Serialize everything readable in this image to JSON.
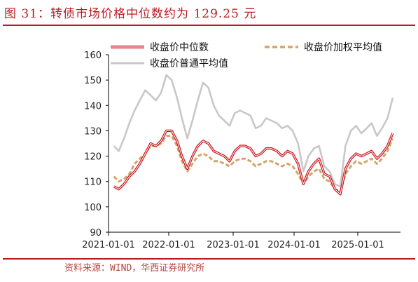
{
  "header": {
    "title": "图 31：转债市场价格中位数约为 129.25 元",
    "source": "资料来源：WIND，华西证券研究所"
  },
  "colors": {
    "accent": "#b81c22",
    "median": "#c8161d",
    "weighted": "#d2a56a",
    "average": "#c8c8c8"
  },
  "chart_data": {
    "type": "line",
    "title": "",
    "xlabel": "",
    "ylabel": "",
    "ylim": [
      90,
      160
    ],
    "yticks": [
      90,
      100,
      110,
      120,
      130,
      140,
      150,
      160
    ],
    "x_ticks": [
      "2021-01-01",
      "2022-01-01",
      "2023-01-01",
      "2024-01-01",
      "2025-01-01"
    ],
    "legend": "top",
    "series": [
      {
        "name": "收盘价中位数",
        "style": "double-red",
        "points": [
          [
            "2021-02-01",
            108
          ],
          [
            "2021-03-01",
            107
          ],
          [
            "2021-04-01",
            109
          ],
          [
            "2021-05-01",
            112
          ],
          [
            "2021-06-01",
            114
          ],
          [
            "2021-07-01",
            117
          ],
          [
            "2021-08-01",
            121
          ],
          [
            "2021-09-01",
            125
          ],
          [
            "2021-10-01",
            124
          ],
          [
            "2021-11-01",
            126
          ],
          [
            "2021-12-01",
            130
          ],
          [
            "2022-01-01",
            130
          ],
          [
            "2022-02-01",
            126
          ],
          [
            "2022-03-01",
            120
          ],
          [
            "2022-04-01",
            115
          ],
          [
            "2022-05-01",
            120
          ],
          [
            "2022-06-01",
            124
          ],
          [
            "2022-07-01",
            126
          ],
          [
            "2022-08-01",
            125
          ],
          [
            "2022-09-01",
            122
          ],
          [
            "2022-10-01",
            121
          ],
          [
            "2022-11-01",
            120
          ],
          [
            "2022-12-01",
            118
          ],
          [
            "2023-01-01",
            122
          ],
          [
            "2023-02-01",
            124
          ],
          [
            "2023-03-01",
            124
          ],
          [
            "2023-04-01",
            123
          ],
          [
            "2023-05-01",
            120
          ],
          [
            "2023-06-01",
            121
          ],
          [
            "2023-07-01",
            123
          ],
          [
            "2023-08-01",
            123
          ],
          [
            "2023-09-01",
            122
          ],
          [
            "2023-10-01",
            120
          ],
          [
            "2023-11-01",
            122
          ],
          [
            "2023-12-01",
            121
          ],
          [
            "2024-01-01",
            117
          ],
          [
            "2024-02-01",
            109
          ],
          [
            "2024-03-01",
            114
          ],
          [
            "2024-04-01",
            117
          ],
          [
            "2024-05-01",
            119
          ],
          [
            "2024-06-01",
            113
          ],
          [
            "2024-07-01",
            112
          ],
          [
            "2024-08-01",
            107
          ],
          [
            "2024-09-01",
            105
          ],
          [
            "2024-10-01",
            115
          ],
          [
            "2024-11-01",
            119
          ],
          [
            "2024-12-01",
            121
          ],
          [
            "2025-01-01",
            120
          ],
          [
            "2025-02-01",
            121
          ],
          [
            "2025-03-01",
            122
          ],
          [
            "2025-04-01",
            119
          ],
          [
            "2025-05-01",
            121
          ],
          [
            "2025-06-01",
            124
          ],
          [
            "2025-07-01",
            129
          ]
        ]
      },
      {
        "name": "收盘价加权平均值",
        "style": "dashed-tan",
        "points": [
          [
            "2021-02-01",
            112
          ],
          [
            "2021-03-01",
            110
          ],
          [
            "2021-04-01",
            111
          ],
          [
            "2021-05-01",
            113
          ],
          [
            "2021-06-01",
            117
          ],
          [
            "2021-07-01",
            119
          ],
          [
            "2021-08-01",
            121
          ],
          [
            "2021-09-01",
            124
          ],
          [
            "2021-10-01",
            124
          ],
          [
            "2021-11-01",
            125
          ],
          [
            "2021-12-01",
            128
          ],
          [
            "2022-01-01",
            128
          ],
          [
            "2022-02-01",
            124
          ],
          [
            "2022-03-01",
            118
          ],
          [
            "2022-04-01",
            114
          ],
          [
            "2022-05-01",
            117
          ],
          [
            "2022-06-01",
            120
          ],
          [
            "2022-07-01",
            121
          ],
          [
            "2022-08-01",
            120
          ],
          [
            "2022-09-01",
            118
          ],
          [
            "2022-10-01",
            118
          ],
          [
            "2022-11-01",
            117
          ],
          [
            "2022-12-01",
            116
          ],
          [
            "2023-01-01",
            118
          ],
          [
            "2023-02-01",
            119
          ],
          [
            "2023-03-01",
            119
          ],
          [
            "2023-04-01",
            118
          ],
          [
            "2023-05-01",
            116
          ],
          [
            "2023-06-01",
            117
          ],
          [
            "2023-07-01",
            118
          ],
          [
            "2023-08-01",
            118
          ],
          [
            "2023-09-01",
            117
          ],
          [
            "2023-10-01",
            116
          ],
          [
            "2023-11-01",
            117
          ],
          [
            "2023-12-01",
            116
          ],
          [
            "2024-01-01",
            113
          ],
          [
            "2024-02-01",
            109
          ],
          [
            "2024-03-01",
            112
          ],
          [
            "2024-04-01",
            114
          ],
          [
            "2024-05-01",
            115
          ],
          [
            "2024-06-01",
            111
          ],
          [
            "2024-07-01",
            110
          ],
          [
            "2024-08-01",
            107
          ],
          [
            "2024-09-01",
            106
          ],
          [
            "2024-10-01",
            113
          ],
          [
            "2024-11-01",
            116
          ],
          [
            "2024-12-01",
            118
          ],
          [
            "2025-01-01",
            117
          ],
          [
            "2025-02-01",
            118
          ],
          [
            "2025-03-01",
            119
          ],
          [
            "2025-04-01",
            117
          ],
          [
            "2025-05-01",
            119
          ],
          [
            "2025-06-01",
            122
          ],
          [
            "2025-07-01",
            127
          ]
        ]
      },
      {
        "name": "收盘价普通平均值",
        "style": "solid-gray",
        "points": [
          [
            "2021-02-01",
            124
          ],
          [
            "2021-03-01",
            122
          ],
          [
            "2021-04-01",
            127
          ],
          [
            "2021-05-01",
            133
          ],
          [
            "2021-06-01",
            138
          ],
          [
            "2021-07-01",
            142
          ],
          [
            "2021-08-01",
            146
          ],
          [
            "2021-09-01",
            144
          ],
          [
            "2021-10-01",
            142
          ],
          [
            "2021-11-01",
            145
          ],
          [
            "2021-12-01",
            152
          ],
          [
            "2022-01-01",
            150
          ],
          [
            "2022-02-01",
            143
          ],
          [
            "2022-03-01",
            135
          ],
          [
            "2022-04-01",
            127
          ],
          [
            "2022-05-01",
            134
          ],
          [
            "2022-06-01",
            142
          ],
          [
            "2022-07-01",
            149
          ],
          [
            "2022-08-01",
            147
          ],
          [
            "2022-09-01",
            140
          ],
          [
            "2022-10-01",
            136
          ],
          [
            "2022-11-01",
            134
          ],
          [
            "2022-12-01",
            132
          ],
          [
            "2023-01-01",
            137
          ],
          [
            "2023-02-01",
            138
          ],
          [
            "2023-03-01",
            137
          ],
          [
            "2023-04-01",
            136
          ],
          [
            "2023-05-01",
            131
          ],
          [
            "2023-06-01",
            132
          ],
          [
            "2023-07-01",
            135
          ],
          [
            "2023-08-01",
            134
          ],
          [
            "2023-09-01",
            133
          ],
          [
            "2023-10-01",
            131
          ],
          [
            "2023-11-01",
            132
          ],
          [
            "2023-12-01",
            130
          ],
          [
            "2024-01-01",
            125
          ],
          [
            "2024-02-01",
            114
          ],
          [
            "2024-03-01",
            120
          ],
          [
            "2024-04-01",
            123
          ],
          [
            "2024-05-01",
            124
          ],
          [
            "2024-06-01",
            116
          ],
          [
            "2024-07-01",
            114
          ],
          [
            "2024-08-01",
            109
          ],
          [
            "2024-09-01",
            108
          ],
          [
            "2024-10-01",
            124
          ],
          [
            "2024-11-01",
            130
          ],
          [
            "2024-12-01",
            132
          ],
          [
            "2025-01-01",
            129
          ],
          [
            "2025-02-01",
            131
          ],
          [
            "2025-03-01",
            133
          ],
          [
            "2025-04-01",
            128
          ],
          [
            "2025-05-01",
            131
          ],
          [
            "2025-06-01",
            135
          ],
          [
            "2025-07-01",
            143
          ]
        ]
      }
    ]
  }
}
